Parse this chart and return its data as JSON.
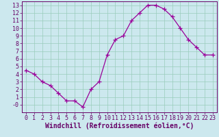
{
  "x": [
    0,
    1,
    2,
    3,
    4,
    5,
    6,
    7,
    8,
    9,
    10,
    11,
    12,
    13,
    14,
    15,
    16,
    17,
    18,
    19,
    20,
    21,
    22,
    23
  ],
  "y": [
    4.5,
    4.0,
    3.0,
    2.5,
    1.5,
    0.5,
    0.5,
    -0.3,
    2.0,
    3.0,
    6.5,
    8.5,
    9.0,
    11.0,
    12.0,
    13.0,
    13.0,
    12.5,
    11.5,
    10.0,
    8.5,
    7.5,
    6.5,
    6.5
  ],
  "line_color": "#990099",
  "marker": "+",
  "marker_size": 4,
  "background_color": "#cce8ee",
  "grid_color": "#99ccbb",
  "xlabel": "Windchill (Refroidissement éolien,°C)",
  "xlim": [
    -0.5,
    23.5
  ],
  "ylim": [
    -1.0,
    13.5
  ],
  "yticks": [
    0,
    1,
    2,
    3,
    4,
    5,
    6,
    7,
    8,
    9,
    10,
    11,
    12,
    13
  ],
  "xticks": [
    0,
    1,
    2,
    3,
    4,
    5,
    6,
    7,
    8,
    9,
    10,
    11,
    12,
    13,
    14,
    15,
    16,
    17,
    18,
    19,
    20,
    21,
    22,
    23
  ],
  "tick_fontsize": 6,
  "xlabel_fontsize": 7,
  "axis_label_color": "#660066",
  "spine_color": "#660066",
  "linewidth": 0.9,
  "marker_edge_width": 0.9
}
